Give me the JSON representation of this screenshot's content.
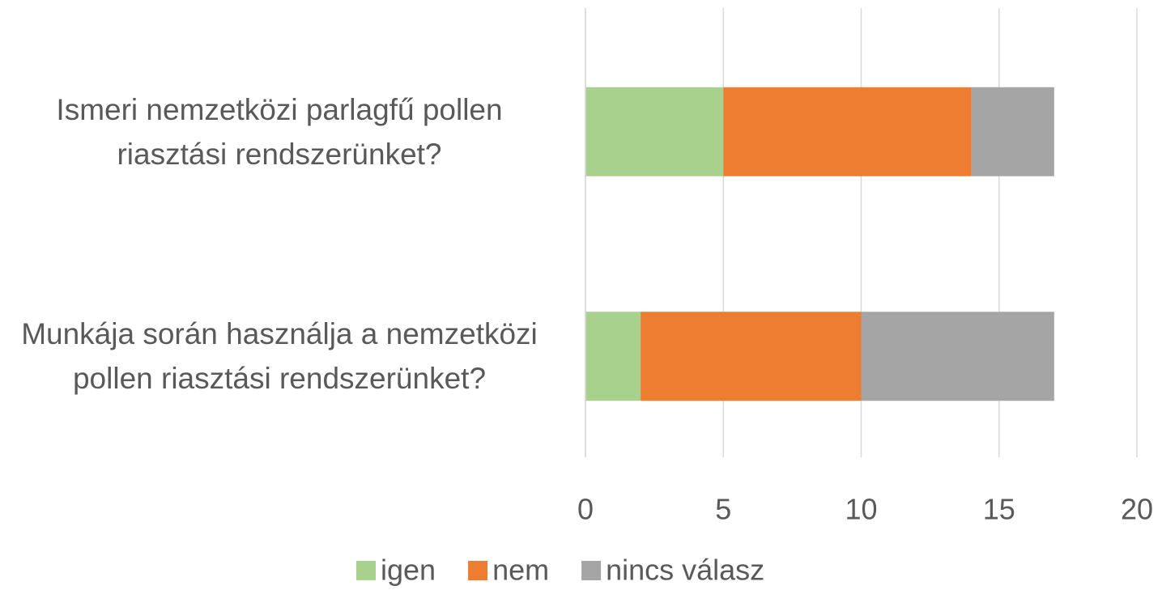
{
  "chart_data": {
    "type": "stacked-barh",
    "categories": [
      "Ismeri nemzetközi parlagfű pollen riasztási rendszerünket?",
      "Munkája során használja a nemzetközi pollen riasztási rendszerünket?"
    ],
    "series": [
      {
        "name": "igen",
        "color": "#a9d18e",
        "values": [
          5,
          2
        ]
      },
      {
        "name": "nem",
        "color": "#ed7d31",
        "values": [
          9,
          8
        ]
      },
      {
        "name": "nincs válasz",
        "color": "#a5a5a5",
        "values": [
          3,
          7
        ]
      }
    ],
    "xlim": [
      0,
      20
    ],
    "xticks": [
      0,
      5,
      10,
      15,
      20
    ],
    "grid": true,
    "legend": "bottom"
  }
}
